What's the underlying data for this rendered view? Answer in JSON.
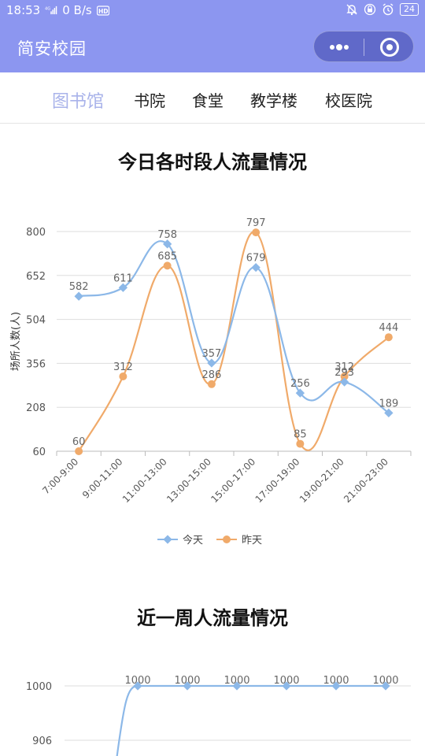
{
  "status": {
    "time": "18:53",
    "network": "4G",
    "speed": "0 B/s",
    "battery": "24"
  },
  "app": {
    "title": "简安校园",
    "more_icon": "more-dots-icon",
    "close_icon": "target-circle-icon",
    "color": "#8c96f0"
  },
  "tabs": [
    {
      "label": "图书馆",
      "active": true
    },
    {
      "label": "书院",
      "active": false
    },
    {
      "label": "食堂",
      "active": false
    },
    {
      "label": "教学楼",
      "active": false
    },
    {
      "label": "校医院",
      "active": false
    }
  ],
  "chart_data": [
    {
      "type": "line",
      "title": "今日各时段人流量情况",
      "ylabel": "场所人数(人)",
      "ylim": [
        60,
        800
      ],
      "yticks": [
        "800",
        "652",
        "504",
        "356",
        "208",
        "60"
      ],
      "categories": [
        "7:00-9:00",
        "9:00-11:00",
        "11:00-13:00",
        "13:00-15:00",
        "15:00-17:00",
        "17:00-19:00",
        "19:00-21:00",
        "21:00-23:00"
      ],
      "series": [
        {
          "name": "今天",
          "color": "#8cb8e8",
          "values": [
            582,
            611,
            758,
            357,
            679,
            256,
            293,
            189
          ]
        },
        {
          "name": "昨天",
          "color": "#f0aa6a",
          "values": [
            60,
            312,
            685,
            286,
            797,
            85,
            312,
            444
          ]
        }
      ],
      "grid": true,
      "legend": "bottom"
    },
    {
      "type": "line",
      "title": "近一周人流量情况",
      "yticks": [
        "1000",
        "906"
      ],
      "series": [
        {
          "color": "#8cb8e8",
          "values": [
            1000,
            1000,
            1000,
            1000,
            1000,
            1000
          ]
        }
      ],
      "grid": true
    }
  ]
}
